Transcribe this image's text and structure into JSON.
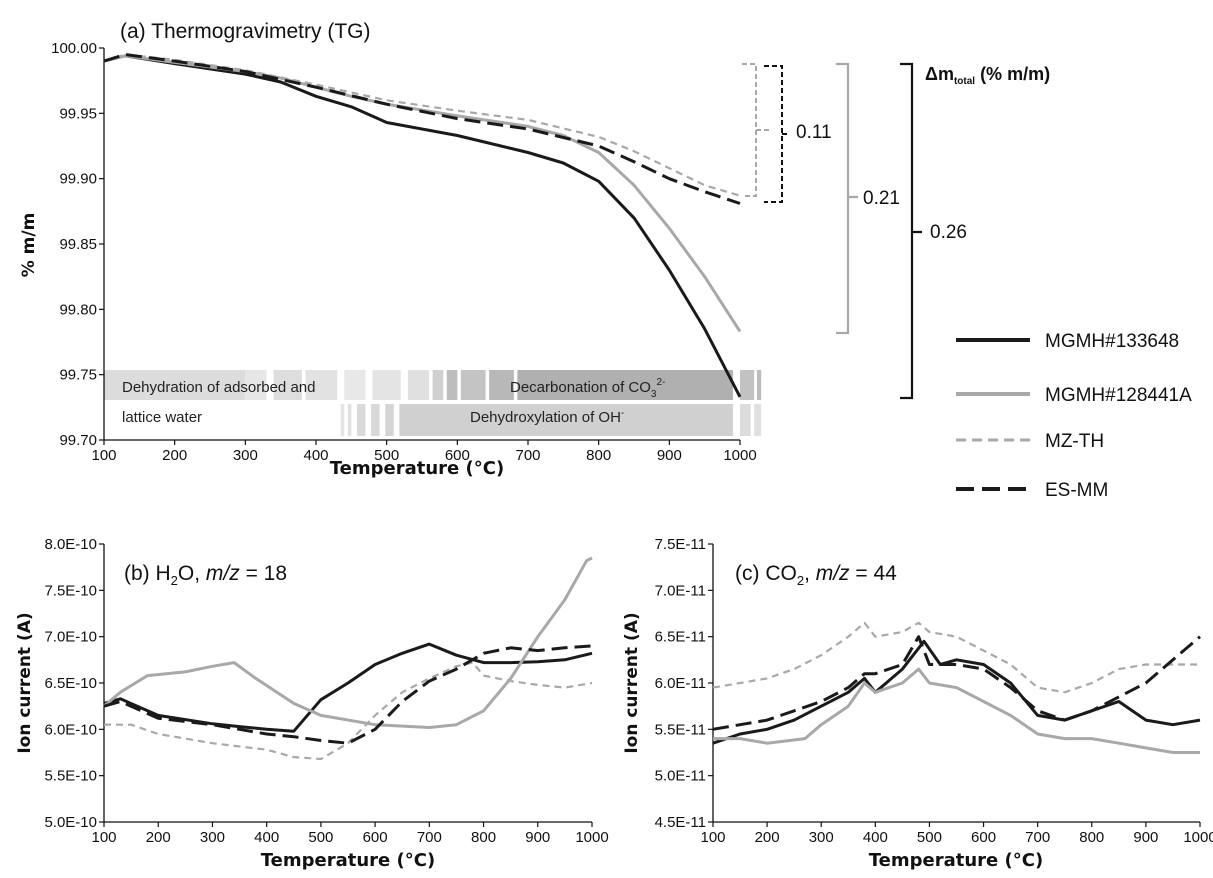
{
  "chart_data": [
    {
      "type": "line",
      "title": "(a) Thermogravimetry (TG)",
      "xlabel": "Temperature (°C)",
      "ylabel": "% m/m",
      "xlim": [
        100,
        1000
      ],
      "ylim": [
        99.7,
        100.0
      ],
      "x_ticks": [
        "100",
        "200",
        "300",
        "400",
        "500",
        "600",
        "700",
        "800",
        "900",
        "1000"
      ],
      "y_ticks": [
        "100.00",
        "99.95",
        "99.90",
        "99.85",
        "99.80",
        "99.75",
        "99.70"
      ],
      "series": [
        {
          "name": "MGMH#133648",
          "color": "#1a1a1a",
          "dash": "solid",
          "x": [
            100,
            130,
            200,
            300,
            350,
            400,
            450,
            500,
            600,
            700,
            750,
            800,
            850,
            900,
            950,
            1000
          ],
          "y": [
            99.99,
            99.994,
            99.988,
            99.98,
            99.974,
            99.963,
            99.955,
            99.943,
            99.933,
            99.92,
            99.912,
            99.898,
            99.87,
            99.83,
            99.785,
            99.733
          ]
        },
        {
          "name": "MGMH#128441A",
          "color": "#a8a8a8",
          "dash": "solid",
          "x": [
            100,
            130,
            200,
            300,
            350,
            400,
            450,
            500,
            600,
            700,
            750,
            800,
            850,
            900,
            950,
            1000
          ],
          "y": [
            99.99,
            99.994,
            99.989,
            99.982,
            99.977,
            99.97,
            99.963,
            99.957,
            99.948,
            99.94,
            99.933,
            99.92,
            99.895,
            99.862,
            99.825,
            99.783
          ]
        },
        {
          "name": "MZ-TH",
          "color": "#a8a8a8",
          "dash": "short",
          "x": [
            100,
            130,
            200,
            300,
            400,
            500,
            600,
            700,
            800,
            850,
            900,
            950,
            1000
          ],
          "y": [
            99.99,
            99.995,
            99.991,
            99.983,
            99.972,
            99.96,
            99.952,
            99.945,
            99.932,
            99.921,
            99.908,
            99.895,
            99.887
          ]
        },
        {
          "name": "ES-MM",
          "color": "#1a1a1a",
          "dash": "long",
          "x": [
            100,
            130,
            200,
            300,
            400,
            500,
            600,
            700,
            800,
            850,
            900,
            950,
            1000
          ],
          "y": [
            99.99,
            99.995,
            99.99,
            99.982,
            99.97,
            99.957,
            99.946,
            99.938,
            99.925,
            99.913,
            99.9,
            99.89,
            99.881
          ]
        }
      ],
      "annotations": {
        "delta_label_main": "Δm",
        "delta_label_sub": "total",
        "delta_label_unit": " (% m/m)",
        "bracket_small": "0.11",
        "bracket_mid": "0.21",
        "bracket_large": "0.26",
        "band1": "Dehydration of adsorbed and",
        "band1b": "lattice water",
        "band2": "Decarbonation of CO",
        "band2_sub": "3",
        "band2_sup": "2-",
        "band3": "Dehydroxylation of OH",
        "band3_sup": "-"
      }
    },
    {
      "type": "line",
      "title_pre": "(b) H",
      "title_sub": "2",
      "title_mid": "O, ",
      "title_italic": "m/z",
      "title_post": " = 18",
      "xlabel": "Temperature (°C)",
      "ylabel": "Ion current (A)",
      "xlim": [
        100,
        1000
      ],
      "ylim": [
        5e-10,
        8e-10
      ],
      "x_ticks": [
        "100",
        "200",
        "300",
        "400",
        "500",
        "600",
        "700",
        "800",
        "900",
        "1000"
      ],
      "y_ticks": [
        "8.0E-10",
        "7.5E-10",
        "7.0E-10",
        "6.5E-10",
        "6.0E-10",
        "5.5E-10",
        "5.0E-10"
      ],
      "series": [
        {
          "name": "MGMH#133648",
          "color": "#1a1a1a",
          "dash": "solid",
          "x": [
            100,
            130,
            200,
            300,
            350,
            400,
            450,
            500,
            550,
            600,
            650,
            700,
            750,
            800,
            850,
            900,
            950,
            1000
          ],
          "y": [
            6.28e-10,
            6.33e-10,
            6.15e-10,
            6.06e-10,
            6.03e-10,
            6e-10,
            5.98e-10,
            6.32e-10,
            6.5e-10,
            6.7e-10,
            6.82e-10,
            6.92e-10,
            6.8e-10,
            6.72e-10,
            6.72e-10,
            6.73e-10,
            6.75e-10,
            6.82e-10
          ]
        },
        {
          "name": "MGMH#128441A",
          "color": "#a8a8a8",
          "dash": "solid",
          "x": [
            100,
            130,
            180,
            250,
            300,
            340,
            380,
            450,
            500,
            600,
            700,
            750,
            800,
            850,
            900,
            950,
            990,
            1000
          ],
          "y": [
            6.25e-10,
            6.4e-10,
            6.58e-10,
            6.62e-10,
            6.68e-10,
            6.72e-10,
            6.55e-10,
            6.28e-10,
            6.15e-10,
            6.05e-10,
            6.02e-10,
            6.05e-10,
            6.2e-10,
            6.55e-10,
            7e-10,
            7.4e-10,
            7.82e-10,
            7.85e-10
          ]
        },
        {
          "name": "MZ-TH",
          "color": "#a8a8a8",
          "dash": "short",
          "x": [
            100,
            150,
            200,
            300,
            400,
            450,
            500,
            550,
            600,
            650,
            700,
            750,
            780,
            800,
            850,
            900,
            950,
            1000
          ],
          "y": [
            6.05e-10,
            6.05e-10,
            5.95e-10,
            5.85e-10,
            5.78e-10,
            5.7e-10,
            5.68e-10,
            5.85e-10,
            6.15e-10,
            6.4e-10,
            6.55e-10,
            6.68e-10,
            6.72e-10,
            6.58e-10,
            6.52e-10,
            6.48e-10,
            6.45e-10,
            6.5e-10
          ]
        },
        {
          "name": "ES-MM",
          "color": "#1a1a1a",
          "dash": "long",
          "x": [
            100,
            130,
            200,
            300,
            400,
            450,
            500,
            550,
            600,
            650,
            700,
            750,
            800,
            850,
            900,
            950,
            1000
          ],
          "y": [
            6.25e-10,
            6.3e-10,
            6.12e-10,
            6.05e-10,
            5.95e-10,
            5.92e-10,
            5.88e-10,
            5.85e-10,
            6e-10,
            6.3e-10,
            6.52e-10,
            6.65e-10,
            6.82e-10,
            6.88e-10,
            6.85e-10,
            6.88e-10,
            6.9e-10
          ]
        }
      ]
    },
    {
      "type": "line",
      "title_pre": "(c) CO",
      "title_sub": "2",
      "title_mid": ", ",
      "title_italic": "m/z",
      "title_post": " = 44",
      "xlabel": "Temperature (°C)",
      "ylabel": "Ion current (A)",
      "xlim": [
        100,
        1000
      ],
      "ylim": [
        4.5e-11,
        7.5e-11
      ],
      "x_ticks": [
        "100",
        "200",
        "300",
        "400",
        "500",
        "600",
        "700",
        "800",
        "900",
        "1000"
      ],
      "y_ticks": [
        "7.5E-11",
        "7.0E-11",
        "6.5E-11",
        "6.0E-11",
        "5.5E-11",
        "5.0E-11",
        "4.5E-11"
      ],
      "series": [
        {
          "name": "MGMH#133648",
          "color": "#1a1a1a",
          "dash": "solid",
          "x": [
            100,
            150,
            200,
            250,
            300,
            350,
            380,
            400,
            450,
            490,
            520,
            550,
            600,
            650,
            700,
            750,
            800,
            850,
            900,
            950,
            1000
          ],
          "y": [
            5.35e-11,
            5.45e-11,
            5.5e-11,
            5.6e-11,
            5.75e-11,
            5.9e-11,
            6.05e-11,
            5.9e-11,
            6.15e-11,
            6.45e-11,
            6.2e-11,
            6.25e-11,
            6.2e-11,
            6e-11,
            5.65e-11,
            5.6e-11,
            5.7e-11,
            5.8e-11,
            5.6e-11,
            5.55e-11,
            5.6e-11
          ]
        },
        {
          "name": "MGMH#128441A",
          "color": "#a8a8a8",
          "dash": "solid",
          "x": [
            100,
            150,
            200,
            270,
            300,
            350,
            380,
            400,
            450,
            480,
            500,
            550,
            600,
            650,
            700,
            750,
            800,
            850,
            900,
            950,
            1000
          ],
          "y": [
            5.4e-11,
            5.4e-11,
            5.35e-11,
            5.4e-11,
            5.55e-11,
            5.75e-11,
            6e-11,
            5.9e-11,
            6e-11,
            6.15e-11,
            6e-11,
            5.95e-11,
            5.8e-11,
            5.65e-11,
            5.45e-11,
            5.4e-11,
            5.4e-11,
            5.35e-11,
            5.3e-11,
            5.25e-11,
            5.25e-11
          ]
        },
        {
          "name": "MZ-TH",
          "color": "#a8a8a8",
          "dash": "short",
          "x": [
            100,
            150,
            200,
            250,
            300,
            350,
            380,
            400,
            450,
            480,
            500,
            550,
            600,
            650,
            700,
            750,
            800,
            850,
            900,
            950,
            1000
          ],
          "y": [
            5.95e-11,
            6e-11,
            6.05e-11,
            6.15e-11,
            6.3e-11,
            6.5e-11,
            6.65e-11,
            6.5e-11,
            6.55e-11,
            6.65e-11,
            6.55e-11,
            6.5e-11,
            6.35e-11,
            6.2e-11,
            5.95e-11,
            5.9e-11,
            6e-11,
            6.15e-11,
            6.2e-11,
            6.2e-11,
            6.2e-11
          ]
        },
        {
          "name": "ES-MM",
          "color": "#1a1a1a",
          "dash": "long",
          "x": [
            100,
            150,
            200,
            250,
            300,
            350,
            380,
            400,
            450,
            480,
            500,
            550,
            600,
            650,
            700,
            750,
            800,
            850,
            900,
            950,
            1000
          ],
          "y": [
            5.5e-11,
            5.55e-11,
            5.6e-11,
            5.7e-11,
            5.8e-11,
            5.95e-11,
            6.1e-11,
            6.1e-11,
            6.2e-11,
            6.5e-11,
            6.2e-11,
            6.2e-11,
            6.15e-11,
            5.95e-11,
            5.7e-11,
            5.6e-11,
            5.7e-11,
            5.85e-11,
            6e-11,
            6.25e-11,
            6.5e-11
          ]
        }
      ]
    }
  ],
  "legend": [
    {
      "label": "MGMH#133648",
      "color": "#1a1a1a",
      "dash": "solid"
    },
    {
      "label": "MGMH#128441A",
      "color": "#a8a8a8",
      "dash": "solid"
    },
    {
      "label": "MZ-TH",
      "color": "#a8a8a8",
      "dash": "short"
    },
    {
      "label": "ES-MM",
      "color": "#1a1a1a",
      "dash": "long"
    }
  ]
}
